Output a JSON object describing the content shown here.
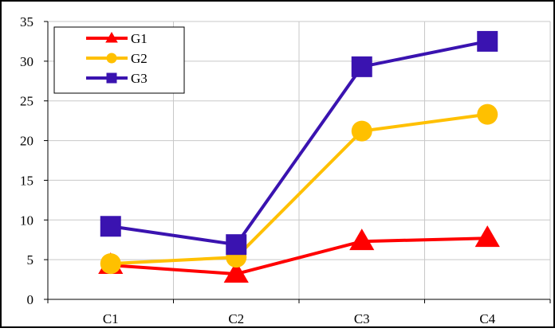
{
  "chart_data": {
    "type": "line",
    "categories": [
      "C1",
      "C2",
      "C3",
      "C4"
    ],
    "series": [
      {
        "name": "G1",
        "values": [
          4.3,
          3.2,
          7.3,
          7.7
        ],
        "color": "#ff0000",
        "marker": "triangle"
      },
      {
        "name": "G2",
        "values": [
          4.5,
          5.3,
          21.2,
          23.3
        ],
        "color": "#ffc000",
        "marker": "circle"
      },
      {
        "name": "G3",
        "values": [
          9.2,
          6.9,
          29.3,
          32.5
        ],
        "color": "#3a13b0",
        "marker": "square"
      }
    ],
    "ylim": [
      0,
      35
    ],
    "yticks": [
      0,
      5,
      10,
      15,
      20,
      25,
      30,
      35
    ],
    "grid": true,
    "legend_position": "top-left",
    "xlabel": "",
    "ylabel": "",
    "title": ""
  }
}
